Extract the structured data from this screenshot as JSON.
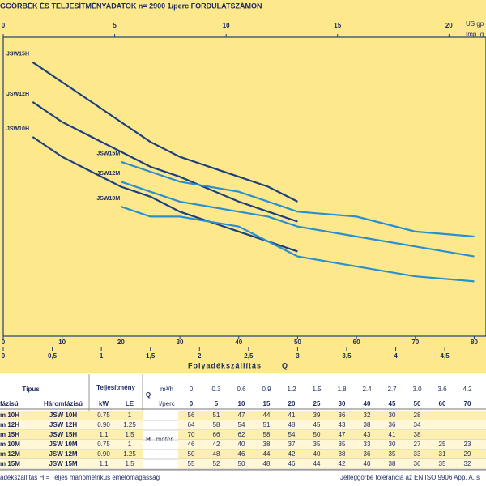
{
  "chart_data": {
    "type": "line",
    "title": "GGÖRBÉK ÉS TELJESÍTMÉNYADATOK n= 2900  1/perc FORDULATSZÁMON",
    "x_label": "Folyadékszállítás",
    "x_symbol": "Q",
    "x": [
      0,
      5,
      10,
      15,
      20,
      25,
      30,
      40,
      45,
      50,
      60,
      70,
      80
    ],
    "xlim": [
      0,
      82
    ],
    "xticks": [
      0,
      10,
      20,
      30,
      40,
      50,
      60,
      70,
      80
    ],
    "x2lim": [
      0,
      4.92
    ],
    "x2ticks": [
      0,
      {
        "value": 0.5,
        "label": "0,5"
      },
      1,
      {
        "value": 1.5,
        "label": "1,5"
      },
      2,
      {
        "value": 2.5,
        "label": "2,5"
      },
      3,
      {
        "value": 3.5,
        "label": "3,5"
      },
      4,
      {
        "value": 4.5,
        "label": "4,5"
      }
    ],
    "x3lim": [
      0,
      21.66
    ],
    "x3ticks": [
      0,
      5,
      10,
      15,
      20
    ],
    "x3_label": "US gp",
    "x4_label": "Imp. g",
    "ylim": [
      11,
      71
    ],
    "series": [
      {
        "name": "JSW15H",
        "color": "#1d3f7c",
        "values": [
          null,
          66,
          62,
          58,
          54,
          50,
          47,
          43,
          41,
          38,
          null,
          null,
          null
        ]
      },
      {
        "name": "JSW12H",
        "color": "#1d3f7c",
        "values": [
          null,
          58,
          54,
          51,
          48,
          45,
          43,
          38,
          36,
          34,
          null,
          null,
          null
        ]
      },
      {
        "name": "JSW10H",
        "color": "#1d3f7c",
        "values": [
          null,
          51,
          47,
          44,
          41,
          39,
          36,
          32,
          30,
          28,
          null,
          null,
          null
        ]
      },
      {
        "name": "JSW15M",
        "color": "#2a8fd0",
        "values": [
          null,
          null,
          null,
          null,
          46,
          44,
          42,
          40,
          38,
          36,
          35,
          32,
          31
        ]
      },
      {
        "name": "JSW12M",
        "color": "#2a8fd0",
        "values": [
          null,
          null,
          null,
          null,
          42,
          40,
          38,
          36,
          35,
          33,
          31,
          29,
          27
        ]
      },
      {
        "name": "JSW10M",
        "color": "#2a8fd0",
        "values": [
          null,
          null,
          null,
          null,
          37,
          35,
          35,
          33,
          30,
          27,
          25,
          23,
          22
        ]
      }
    ]
  },
  "table": {
    "type_header": "Típus",
    "single_header": "fázisú",
    "three_header": "Háromfázisú",
    "power_header": "Teljesítmény",
    "kw_header": "kW",
    "le_header": "LE",
    "q_header": "Q",
    "m3h_header": "m³/h",
    "lpm_header": "l/perc",
    "h_header": "H",
    "h_unit": "méter",
    "q_m3h": [
      "0",
      "0.3",
      "0.6",
      "0.9",
      "1.2",
      "1.5",
      "1.8",
      "2.4",
      "2.7",
      "3.0",
      "3.6",
      "4.2"
    ],
    "q_lpm": [
      "0",
      "5",
      "10",
      "15",
      "20",
      "25",
      "30",
      "40",
      "45",
      "50",
      "60",
      "70"
    ],
    "rows": [
      {
        "single": "m 10H",
        "three": "JSW 10H",
        "kw": "0.75",
        "le": "1",
        "h": [
          "56",
          "51",
          "47",
          "44",
          "41",
          "39",
          "36",
          "32",
          "30",
          "28"
        ]
      },
      {
        "single": "m 12H",
        "three": "JSW 12H",
        "kw": "0.90",
        "le": "1.25",
        "h": [
          "64",
          "58",
          "54",
          "51",
          "48",
          "45",
          "43",
          "38",
          "36",
          "34"
        ]
      },
      {
        "single": "m 15H",
        "three": "JSW 15H",
        "kw": "1.1",
        "le": "1.5",
        "h": [
          "70",
          "66",
          "62",
          "58",
          "54",
          "50",
          "47",
          "43",
          "41",
          "38"
        ]
      },
      {
        "single": "m 10M",
        "three": "JSW 10M",
        "kw": "0.75",
        "le": "1",
        "h": [
          "46",
          "42",
          "40",
          "38",
          "37",
          "35",
          "35",
          "33",
          "30",
          "27",
          "25",
          "23"
        ]
      },
      {
        "single": "m 12M",
        "three": "JSW 12M",
        "kw": "0.90",
        "le": "1.25",
        "h": [
          "50",
          "48",
          "46",
          "44",
          "42",
          "40",
          "38",
          "36",
          "35",
          "33",
          "31",
          "29"
        ]
      },
      {
        "single": "m 15M",
        "three": "JSW 15M",
        "kw": "1.1",
        "le": "1.5",
        "h": [
          "55",
          "52",
          "50",
          "48",
          "46",
          "44",
          "42",
          "40",
          "38",
          "36",
          "35",
          "32"
        ]
      }
    ],
    "footer_left": "adékszállítás   H = Teljes manometrikus emelőmagasság",
    "footer_right": "Jelleggörbe tolerancia az EN ISO 9906 App. A. s"
  }
}
